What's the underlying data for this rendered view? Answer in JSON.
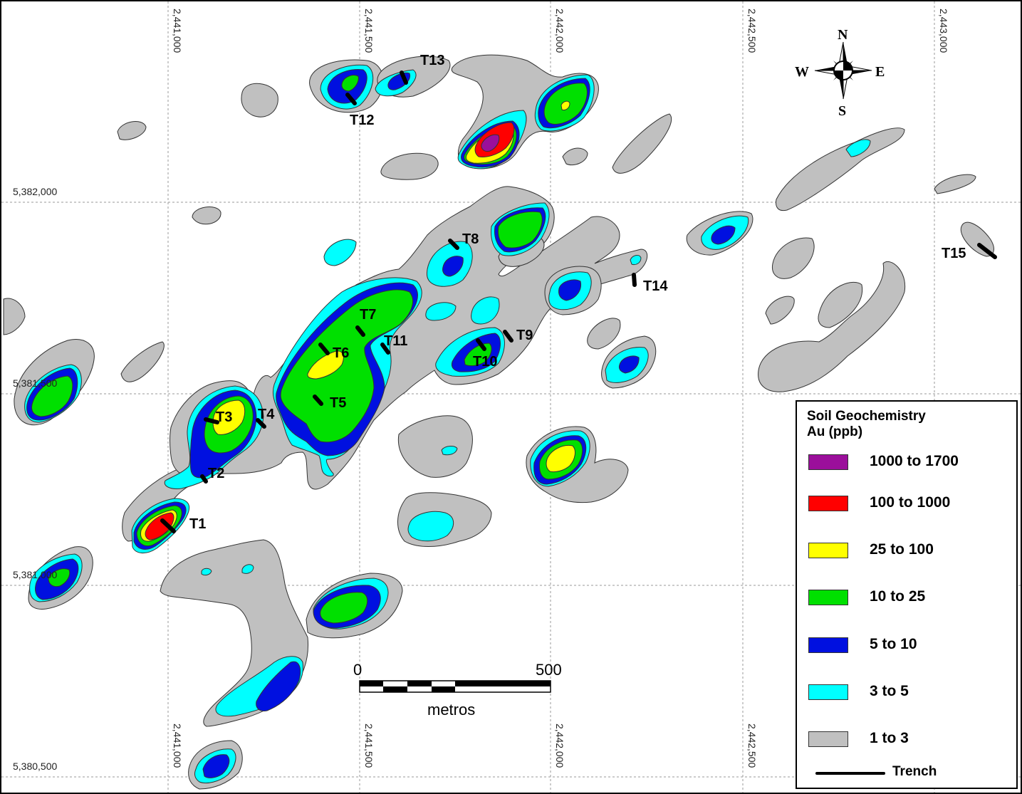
{
  "easting_labels": [
    "2,441,000",
    "2,441,500",
    "2,442,000",
    "2,442,500",
    "2,443,000"
  ],
  "northing_labels": [
    "5,382,000",
    "5,381,500",
    "5,381,000",
    "5,380,500"
  ],
  "north_arrow": {
    "n": "N",
    "s": "S",
    "e": "E",
    "w": "W"
  },
  "scale_bar": {
    "start": "0",
    "end": "500",
    "unit": "metros"
  },
  "trenches": [
    "T1",
    "T2",
    "T3",
    "T4",
    "T5",
    "T6",
    "T7",
    "T8",
    "T9",
    "T10",
    "T11",
    "T12",
    "T13",
    "T14",
    "T15"
  ],
  "legend": {
    "title_line1": "Soil Geochemistry",
    "title_line2": "Au (ppb)",
    "classes": [
      {
        "label": "1000 to 1700",
        "color": "#9b0f9b"
      },
      {
        "label": "100 to 1000",
        "color": "#ff0000"
      },
      {
        "label": "25 to 100",
        "color": "#ffff00"
      },
      {
        "label": "10 to 25",
        "color": "#00e000"
      },
      {
        "label": "5 to 10",
        "color": "#0010e0"
      },
      {
        "label": "3 to 5",
        "color": "#00ffff"
      },
      {
        "label": "1 to 3",
        "color": "#c0c0c0"
      }
    ],
    "trench_label": "Trench"
  }
}
